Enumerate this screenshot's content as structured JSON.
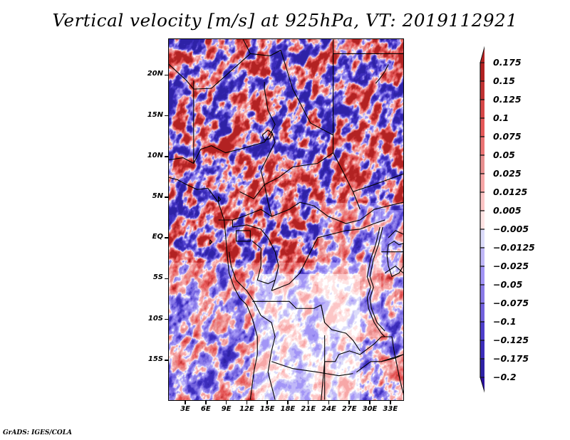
{
  "title": "Vertical velocity [m/s] at 925hPa, VT: 2019112921",
  "credit": "GrADS: IGES/COLA",
  "map": {
    "projection": "latlon",
    "lon_range": [
      0.5,
      35
    ],
    "lat_range": [
      -20,
      24.5
    ],
    "y_ticks": [
      {
        "lat": 20,
        "label": "20N"
      },
      {
        "lat": 15,
        "label": "15N"
      },
      {
        "lat": 10,
        "label": "10N"
      },
      {
        "lat": 5,
        "label": "5N"
      },
      {
        "lat": 0,
        "label": "EQ"
      },
      {
        "lat": -5,
        "label": "5S"
      },
      {
        "lat": -10,
        "label": "10S"
      },
      {
        "lat": -15,
        "label": "15S"
      }
    ],
    "x_ticks": [
      {
        "lon": 3,
        "label": "3E"
      },
      {
        "lon": 6,
        "label": "6E"
      },
      {
        "lon": 9,
        "label": "9E"
      },
      {
        "lon": 12,
        "label": "12E"
      },
      {
        "lon": 15,
        "label": "15E"
      },
      {
        "lon": 18,
        "label": "18E"
      },
      {
        "lon": 21,
        "label": "21E"
      },
      {
        "lon": 24,
        "label": "24E"
      },
      {
        "lon": 27,
        "label": "27E"
      },
      {
        "lon": 30,
        "label": "30E"
      },
      {
        "lon": 33,
        "label": "33E"
      }
    ],
    "variable": "Vertical velocity",
    "units": "m/s",
    "level": "925hPa",
    "valid_time": "2019112921"
  },
  "colorbar": {
    "levels": [
      {
        "label": "0.175",
        "color": "#b22222"
      },
      {
        "label": "0.15",
        "color": "#c13333"
      },
      {
        "label": "0.125",
        "color": "#d84848"
      },
      {
        "label": "0.1",
        "color": "#e65959"
      },
      {
        "label": "0.075",
        "color": "#ec7474"
      },
      {
        "label": "0.05",
        "color": "#e89090"
      },
      {
        "label": "0.025",
        "color": "#f7a7a7"
      },
      {
        "label": "0.0125",
        "color": "#fcc6c6"
      },
      {
        "label": "0.005",
        "color": "#fee4e4"
      },
      {
        "label": "-0.005",
        "color": "#ffffff"
      },
      {
        "label": "-0.0125",
        "color": "#dcdcfa"
      },
      {
        "label": "-0.025",
        "color": "#c0b8f8"
      },
      {
        "label": "-0.05",
        "color": "#a295f6"
      },
      {
        "label": "-0.075",
        "color": "#8a7be8"
      },
      {
        "label": "-0.1",
        "color": "#7262de"
      },
      {
        "label": "-0.125",
        "color": "#4e3fcc"
      },
      {
        "label": "-0.175",
        "color": "#3c2dbb"
      },
      {
        "label": "-0.2",
        "color": "#2e22a6"
      }
    ],
    "top_arrow_color": "#b22222",
    "bottom_arrow_color": "#2a10a0"
  }
}
